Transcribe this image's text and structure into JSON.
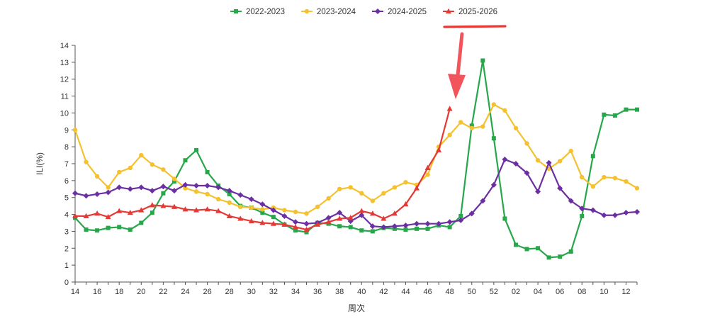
{
  "chart_data": {
    "type": "line",
    "title": "",
    "xlabel": "周次",
    "ylabel": "ILI(%)",
    "ylim": [
      0,
      14
    ],
    "yticks": [
      0,
      1,
      2,
      3,
      4,
      5,
      6,
      7,
      8,
      9,
      10,
      11,
      12,
      13,
      14
    ],
    "legend_position": "top-center",
    "x": [
      "14",
      "15",
      "16",
      "17",
      "18",
      "19",
      "20",
      "21",
      "22",
      "23",
      "24",
      "25",
      "26",
      "27",
      "28",
      "29",
      "30",
      "31",
      "32",
      "33",
      "34",
      "35",
      "36",
      "37",
      "38",
      "39",
      "40",
      "41",
      "42",
      "43",
      "44",
      "45",
      "46",
      "47",
      "48",
      "49",
      "50",
      "51",
      "52",
      "01",
      "02",
      "03",
      "04",
      "05",
      "06",
      "07",
      "08",
      "09",
      "10",
      "11",
      "12",
      "13"
    ],
    "x_tick_labels": [
      "14",
      "16",
      "18",
      "20",
      "22",
      "24",
      "26",
      "28",
      "30",
      "32",
      "34",
      "36",
      "38",
      "40",
      "42",
      "44",
      "46",
      "48",
      "50",
      "52",
      "02",
      "04",
      "06",
      "08",
      "10",
      "12"
    ],
    "series": [
      {
        "name": "2022-2023",
        "color": "#27a74a",
        "marker": "square",
        "values": [
          3.8,
          3.1,
          3.05,
          3.2,
          3.25,
          3.1,
          3.5,
          4.1,
          5.25,
          5.95,
          7.2,
          7.8,
          6.5,
          5.7,
          5.2,
          4.5,
          4.4,
          4.1,
          3.85,
          3.4,
          3.05,
          2.95,
          3.5,
          3.45,
          3.3,
          3.25,
          3.05,
          3.0,
          3.2,
          3.15,
          3.1,
          3.15,
          3.15,
          3.35,
          3.25,
          3.9,
          9.25,
          13.1,
          8.5,
          3.75,
          2.2,
          1.95,
          2.0,
          1.45,
          1.5,
          1.8,
          3.9,
          7.45,
          9.9,
          9.85,
          10.2,
          10.2
        ]
      },
      {
        "name": "2023-2024",
        "color": "#f5c12e",
        "marker": "circle",
        "values": [
          9.0,
          7.1,
          6.25,
          5.6,
          6.5,
          6.75,
          7.5,
          6.95,
          6.65,
          6.1,
          5.55,
          5.35,
          5.2,
          4.9,
          4.7,
          4.45,
          4.4,
          4.3,
          4.4,
          4.25,
          4.15,
          4.05,
          4.45,
          4.95,
          5.5,
          5.6,
          5.25,
          4.8,
          5.25,
          5.6,
          5.9,
          5.75,
          6.35,
          8.0,
          8.7,
          9.45,
          9.1,
          9.2,
          10.5,
          10.15,
          9.1,
          8.2,
          7.2,
          6.7,
          7.15,
          7.75,
          6.2,
          5.65,
          6.2,
          6.15,
          5.95,
          5.55
        ]
      },
      {
        "name": "2024-2025",
        "color": "#6b2fa3",
        "marker": "diamond",
        "values": [
          5.25,
          5.1,
          5.2,
          5.3,
          5.6,
          5.5,
          5.6,
          5.4,
          5.65,
          5.4,
          5.75,
          5.7,
          5.7,
          5.6,
          5.4,
          5.15,
          4.9,
          4.6,
          4.25,
          3.9,
          3.55,
          3.45,
          3.5,
          3.8,
          4.1,
          3.6,
          3.95,
          3.3,
          3.25,
          3.3,
          3.35,
          3.45,
          3.45,
          3.45,
          3.55,
          3.65,
          4.05,
          4.8,
          5.75,
          7.25,
          7.0,
          6.45,
          5.35,
          7.05,
          5.55,
          4.8,
          4.35,
          4.25,
          3.95,
          3.95,
          4.1,
          4.15
        ]
      },
      {
        "name": "2025-2026",
        "color": "#e53935",
        "marker": "triangle",
        "values": [
          3.9,
          3.9,
          4.05,
          3.85,
          4.2,
          4.1,
          4.25,
          4.55,
          4.5,
          4.45,
          4.3,
          4.25,
          4.3,
          4.2,
          3.9,
          3.75,
          3.6,
          3.5,
          3.45,
          3.4,
          3.25,
          3.1,
          3.4,
          3.55,
          3.75,
          3.8,
          4.2,
          4.05,
          3.75,
          4.05,
          4.6,
          5.55,
          6.75,
          7.8,
          10.25,
          null,
          null,
          null,
          null,
          null,
          null,
          null,
          null,
          null,
          null,
          null,
          null,
          null,
          null,
          null,
          null,
          null
        ]
      }
    ],
    "annotations": [
      "red underline beneath 2025-2026 legend entry",
      "red arrow pointing to latest 2025-2026 value"
    ]
  }
}
